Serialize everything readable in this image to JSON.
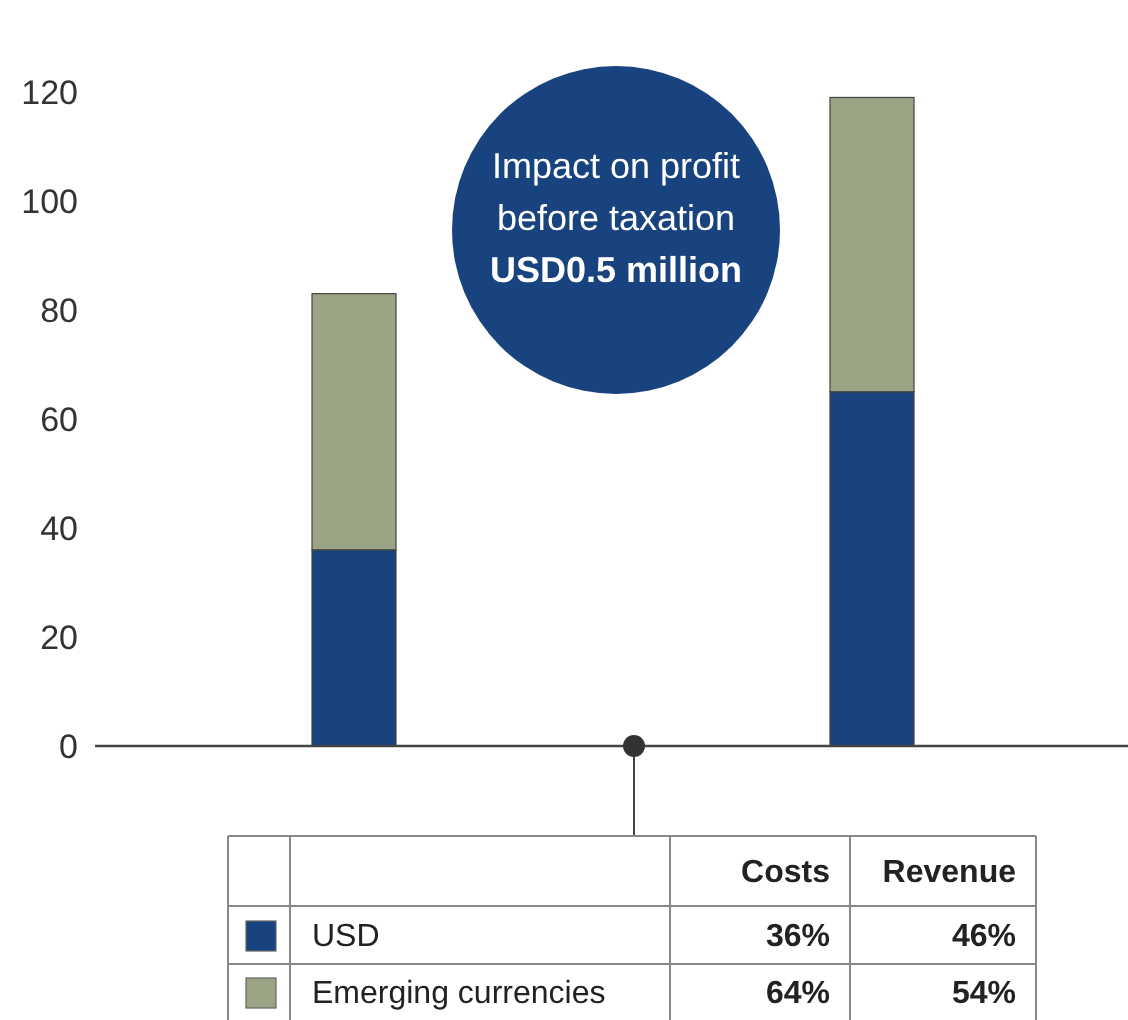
{
  "chart_data": {
    "type": "bar",
    "stacked": true,
    "categories": [
      null,
      null
    ],
    "series": [
      {
        "name": "USD",
        "color": "#18437f",
        "values": [
          36,
          65
        ]
      },
      {
        "name": "Emerging currencies",
        "color": "#9ba585",
        "values": [
          47,
          54
        ]
      }
    ],
    "ylim": [
      0,
      120
    ],
    "yticks": [
      0,
      20,
      40,
      60,
      80,
      100,
      120
    ],
    "grid": false,
    "legend": "bottom",
    "annotations": [
      "Impact on profit before taxation",
      "USD0.5 million",
      "Costs",
      "Revenue",
      "36%",
      "46%",
      "64%",
      "54%"
    ]
  }
}
